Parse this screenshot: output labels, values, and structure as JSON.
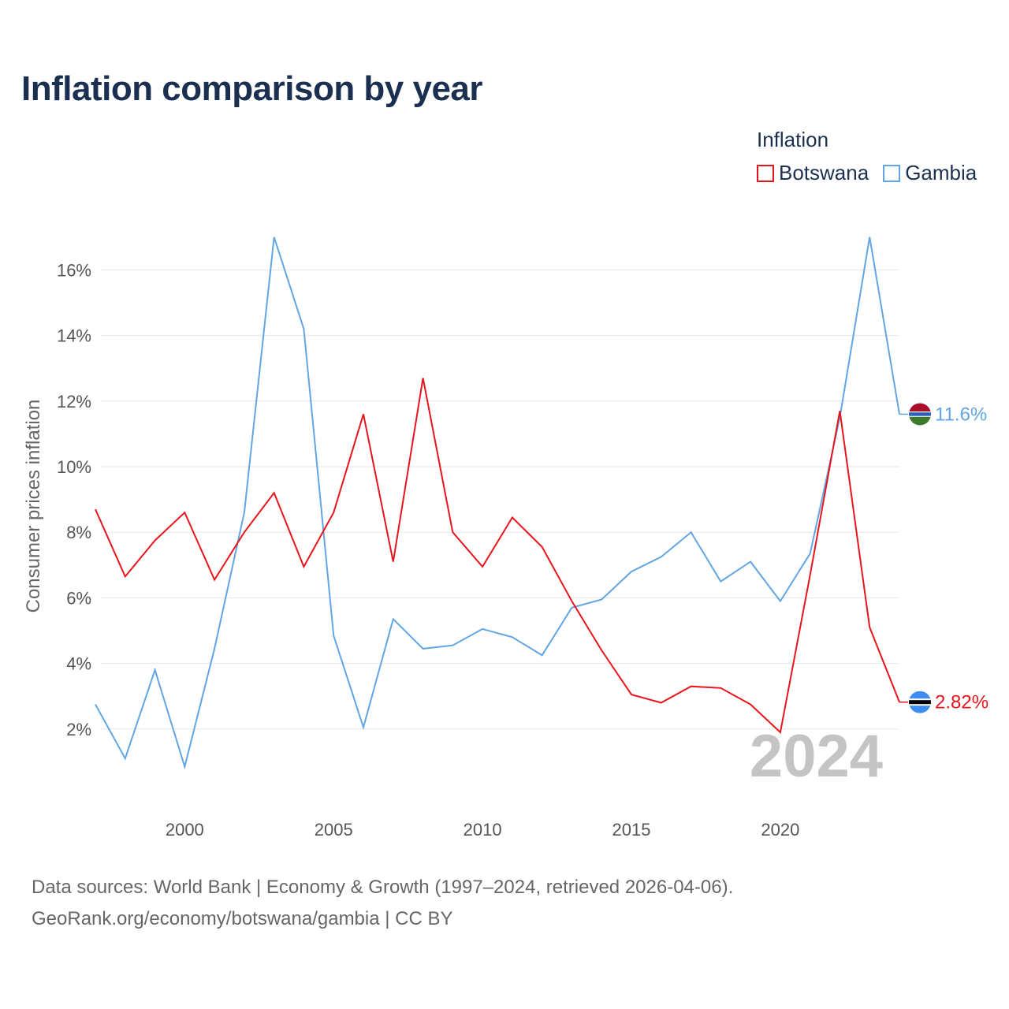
{
  "header": {
    "title": "Inflation comparison by year"
  },
  "legend": {
    "title": "Inflation",
    "items": [
      {
        "name": "Botswana",
        "color": "#e8141c"
      },
      {
        "name": "Gambia",
        "color": "#61a5e3"
      }
    ]
  },
  "footer": {
    "source_line": "Data sources: World Bank | Economy & Growth (1997–2024, retrieved 2026-04-06).",
    "credit_line": "GeoRank.org/economy/botswana/gambia | CC BY"
  },
  "chart_data": {
    "type": "line",
    "ylabel": "Consumer prices inflation",
    "xlabel": "",
    "year_watermark": "2024",
    "xlim": [
      1997,
      2024
    ],
    "ylim": [
      0,
      17.5
    ],
    "x_ticks": [
      2000,
      2005,
      2010,
      2015,
      2020
    ],
    "x_tick_labels": [
      "2000",
      "2005",
      "2010",
      "2015",
      "2020"
    ],
    "y_ticks": [
      2,
      4,
      6,
      8,
      10,
      12,
      14,
      16
    ],
    "y_tick_labels": [
      "2%",
      "4%",
      "6%",
      "8%",
      "10%",
      "12%",
      "14%",
      "16%"
    ],
    "x": [
      1997,
      1998,
      1999,
      2000,
      2001,
      2002,
      2003,
      2004,
      2005,
      2006,
      2007,
      2008,
      2009,
      2010,
      2011,
      2012,
      2013,
      2014,
      2015,
      2016,
      2017,
      2018,
      2019,
      2020,
      2021,
      2022,
      2023,
      2024
    ],
    "series": [
      {
        "name": "Botswana",
        "color": "#e8141c",
        "end_label": "2.82%",
        "values": [
          8.7,
          6.65,
          7.75,
          8.6,
          6.55,
          8.0,
          9.2,
          6.95,
          8.6,
          11.6,
          7.1,
          12.7,
          8.0,
          6.95,
          8.45,
          7.55,
          5.9,
          4.4,
          3.05,
          2.8,
          3.3,
          3.25,
          2.75,
          1.9,
          6.7,
          11.7,
          5.1,
          2.82
        ]
      },
      {
        "name": "Gambia",
        "color": "#61a5e3",
        "end_label": "11.6%",
        "values": [
          2.75,
          1.1,
          3.8,
          0.85,
          4.45,
          8.6,
          17.0,
          14.2,
          4.85,
          2.05,
          5.35,
          4.45,
          4.55,
          5.05,
          4.8,
          4.25,
          5.7,
          5.95,
          6.8,
          7.25,
          8.0,
          6.5,
          7.1,
          5.9,
          7.35,
          11.5,
          17.0,
          11.6
        ]
      }
    ]
  }
}
